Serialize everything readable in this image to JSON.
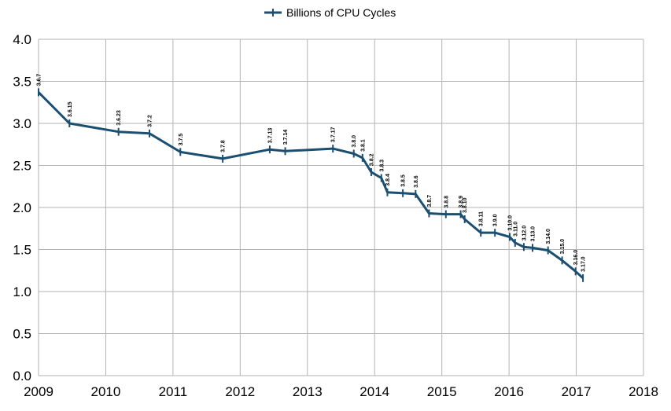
{
  "chart_data": {
    "type": "line",
    "title": "",
    "xlabel": "",
    "ylabel": "",
    "xlim": [
      2009,
      2018
    ],
    "ylim": [
      0.0,
      4.0
    ],
    "x_ticks": [
      "2009",
      "2010",
      "2011",
      "2012",
      "2013",
      "2014",
      "2015",
      "2016",
      "2017",
      "2018"
    ],
    "y_ticks": [
      "0.0",
      "0.5",
      "1.0",
      "1.5",
      "2.0",
      "2.5",
      "3.0",
      "3.5",
      "4.0"
    ],
    "grid": true,
    "legend_position": "top-center",
    "series": [
      {
        "name": "Billions of CPU Cycles",
        "color": "#1b4f72",
        "points": [
          {
            "x": 2009.0,
            "y": 3.37,
            "label": "3.6.7"
          },
          {
            "x": 2009.46,
            "y": 3.0,
            "label": "3.6.15"
          },
          {
            "x": 2010.19,
            "y": 2.9,
            "label": "3.6.23"
          },
          {
            "x": 2010.65,
            "y": 2.88,
            "label": "3.7.2"
          },
          {
            "x": 2011.11,
            "y": 2.66,
            "label": "3.7.5"
          },
          {
            "x": 2011.74,
            "y": 2.58,
            "label": "3.7.8"
          },
          {
            "x": 2012.44,
            "y": 2.69,
            "label": "3.7.13"
          },
          {
            "x": 2012.67,
            "y": 2.67,
            "label": "3.7.14"
          },
          {
            "x": 2013.38,
            "y": 2.7,
            "label": "3.7.17"
          },
          {
            "x": 2013.69,
            "y": 2.64,
            "label": "3.8.0"
          },
          {
            "x": 2013.82,
            "y": 2.59,
            "label": "3.8.1"
          },
          {
            "x": 2013.95,
            "y": 2.42,
            "label": "3.8.2"
          },
          {
            "x": 2014.1,
            "y": 2.35,
            "label": "3.8.3"
          },
          {
            "x": 2014.19,
            "y": 2.18,
            "label": "3.8.4"
          },
          {
            "x": 2014.42,
            "y": 2.17,
            "label": "3.8.5"
          },
          {
            "x": 2014.61,
            "y": 2.16,
            "label": "3.8.6"
          },
          {
            "x": 2014.81,
            "y": 1.93,
            "label": "3.8.7"
          },
          {
            "x": 2015.06,
            "y": 1.92,
            "label": "3.8.8"
          },
          {
            "x": 2015.28,
            "y": 1.92,
            "label": "3.8.9"
          },
          {
            "x": 2015.34,
            "y": 1.86,
            "label": "3.8.10"
          },
          {
            "x": 2015.58,
            "y": 1.7,
            "label": "3.8.11"
          },
          {
            "x": 2015.79,
            "y": 1.7,
            "label": "3.9.0"
          },
          {
            "x": 2016.01,
            "y": 1.65,
            "label": "3.10.0"
          },
          {
            "x": 2016.09,
            "y": 1.58,
            "label": "3.11.0"
          },
          {
            "x": 2016.22,
            "y": 1.53,
            "label": "3.12.0"
          },
          {
            "x": 2016.35,
            "y": 1.52,
            "label": "3.13.0"
          },
          {
            "x": 2016.58,
            "y": 1.49,
            "label": "3.14.0"
          },
          {
            "x": 2016.79,
            "y": 1.37,
            "label": "3.15.0"
          },
          {
            "x": 2016.99,
            "y": 1.24,
            "label": "3.16.0"
          },
          {
            "x": 2017.1,
            "y": 1.16,
            "label": "3.17.0"
          }
        ]
      }
    ]
  }
}
